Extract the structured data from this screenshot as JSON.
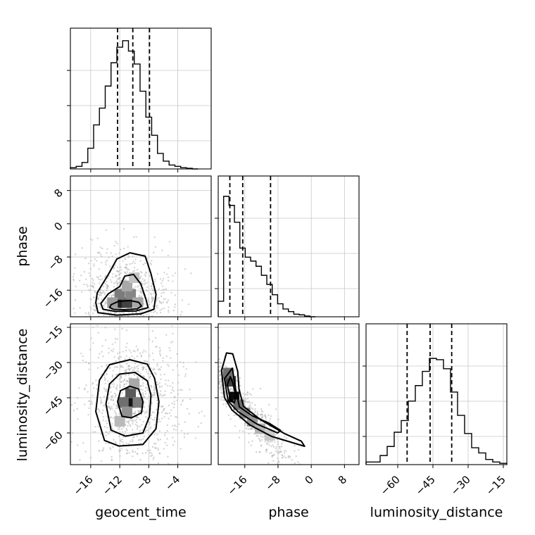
{
  "chart_data": {
    "type": "corner",
    "parameters": [
      "geocent_time",
      "phase",
      "luminosity_distance"
    ],
    "axis_labels": {
      "x": [
        "geocent_time",
        "phase",
        "luminosity_distance"
      ],
      "y": [
        "phase",
        "luminosity_distance"
      ]
    },
    "ranges": {
      "geocent_time": [
        -18.8,
        0.6
      ],
      "phase": [
        -22.4,
        11.5
      ],
      "luminosity_distance": [
        -73.5,
        -13.5
      ]
    },
    "ticks": {
      "geocent_time": [
        -16,
        -12,
        -8,
        -4
      ],
      "phase": [
        -16,
        -8,
        0,
        8
      ],
      "luminosity_distance": [
        -60,
        -45,
        -30,
        -15
      ]
    },
    "quantiles": {
      "geocent_time": [
        -12.3,
        -10.2,
        -7.9
      ],
      "phase": [
        -19.6,
        -16.5,
        -9.8
      ],
      "luminosity_distance": [
        -56.0,
        -46.2,
        -37.0
      ]
    },
    "histograms": {
      "geocent_time": {
        "edges": [
          -18.8,
          -18.0,
          -17.2,
          -16.4,
          -15.6,
          -14.8,
          -14.0,
          -13.2,
          -12.4,
          -11.6,
          -10.8,
          -10.0,
          -9.2,
          -8.4,
          -7.6,
          -6.8,
          -6.0,
          -5.2,
          -4.4,
          -3.6,
          -2.8,
          -2.0,
          -1.2
        ],
        "counts": [
          0.01,
          0.02,
          0.05,
          0.16,
          0.34,
          0.47,
          0.64,
          0.82,
          0.94,
          0.99,
          0.91,
          0.81,
          0.6,
          0.4,
          0.26,
          0.12,
          0.06,
          0.03,
          0.02,
          0.01,
          0.005,
          0.0
        ]
      },
      "phase": {
        "edges": [
          -22.4,
          -21.1,
          -19.8,
          -18.5,
          -17.2,
          -15.9,
          -14.6,
          -13.3,
          -12.0,
          -10.7,
          -9.4,
          -8.1,
          -6.8,
          -5.5,
          -4.2,
          -2.9,
          -1.6,
          -0.3,
          1.0
        ],
        "counts": [
          0.12,
          0.93,
          0.86,
          0.73,
          0.53,
          0.46,
          0.43,
          0.39,
          0.32,
          0.25,
          0.17,
          0.1,
          0.06,
          0.04,
          0.02,
          0.015,
          0.006,
          0.0
        ]
      },
      "luminosity_distance": {
        "edges": [
          -73.5,
          -70.5,
          -67.5,
          -64.5,
          -61.5,
          -58.5,
          -55.5,
          -52.5,
          -49.5,
          -46.5,
          -43.5,
          -40.5,
          -37.5,
          -34.5,
          -31.5,
          -28.5,
          -25.5,
          -22.5,
          -19.5,
          -16.5,
          -13.5
        ],
        "counts": [
          0.02,
          0.02,
          0.07,
          0.14,
          0.25,
          0.34,
          0.49,
          0.61,
          0.72,
          0.82,
          0.81,
          0.74,
          0.56,
          0.38,
          0.24,
          0.13,
          0.09,
          0.04,
          0.02,
          0.01
        ]
      }
    },
    "pairs": [
      {
        "x": "geocent_time",
        "y": "phase",
        "center": [
          -11.4,
          -19.0
        ],
        "density_cells": [
          {
            "x": -12.0,
            "y": -19.0,
            "d": 0.9
          },
          {
            "x": -11.0,
            "y": -19.0,
            "d": 0.75
          },
          {
            "x": -12.0,
            "y": -17.0,
            "d": 0.5
          },
          {
            "x": -10.5,
            "y": -17.0,
            "d": 0.45
          },
          {
            "x": -11.0,
            "y": -15.0,
            "d": 0.3
          },
          {
            "x": -10.0,
            "y": -13.0,
            "d": 0.18
          },
          {
            "x": -13.0,
            "y": -19.0,
            "d": 0.35
          },
          {
            "x": -9.5,
            "y": -19.0,
            "d": 0.3
          }
        ],
        "contours": [
          [
            [
              -13.4,
              -20.2
            ],
            [
              -12.8,
              -20.6
            ],
            [
              -11.4,
              -20.7
            ],
            [
              -9.6,
              -20.5
            ],
            [
              -9.0,
              -19.8
            ],
            [
              -9.4,
              -18.9
            ],
            [
              -10.6,
              -18.5
            ],
            [
              -12.2,
              -18.7
            ],
            [
              -13.2,
              -19.5
            ]
          ],
          [
            [
              -14.6,
              -19.2
            ],
            [
              -14.3,
              -20.6
            ],
            [
              -12.6,
              -21.1
            ],
            [
              -9.8,
              -21.0
            ],
            [
              -8.1,
              -20.2
            ],
            [
              -8.4,
              -18.1
            ],
            [
              -9.1,
              -14.5
            ],
            [
              -10.1,
              -12.2
            ],
            [
              -11.3,
              -12.6
            ],
            [
              -12.0,
              -15.1
            ],
            [
              -13.6,
              -16.9
            ]
          ],
          [
            [
              -15.3,
              -19.0
            ],
            [
              -15.0,
              -21.4
            ],
            [
              -12.4,
              -22.0
            ],
            [
              -9.1,
              -21.7
            ],
            [
              -7.3,
              -20.6
            ],
            [
              -7.0,
              -17.0
            ],
            [
              -7.7,
              -12.0
            ],
            [
              -8.5,
              -7.8
            ],
            [
              -10.6,
              -7.0
            ],
            [
              -12.4,
              -8.5
            ],
            [
              -13.6,
              -12.3
            ],
            [
              -15.1,
              -16.6
            ]
          ]
        ]
      },
      {
        "x": "geocent_time",
        "y": "luminosity_distance",
        "center": [
          -10.3,
          -47.0
        ],
        "density_cells": [
          {
            "x": -10.5,
            "y": -47.0,
            "d": 0.95
          },
          {
            "x": -10.5,
            "y": -43.0,
            "d": 0.65
          },
          {
            "x": -11.5,
            "y": -47.0,
            "d": 0.55
          },
          {
            "x": -9.5,
            "y": -47.0,
            "d": 0.5
          },
          {
            "x": -11.0,
            "y": -51.0,
            "d": 0.4
          },
          {
            "x": -10.0,
            "y": -39.0,
            "d": 0.3
          },
          {
            "x": -12.0,
            "y": -55.0,
            "d": 0.22
          }
        ],
        "contours": [
          [
            [
              -11.7,
              -52.9
            ],
            [
              -10.4,
              -53.6
            ],
            [
              -9.0,
              -51.4
            ],
            [
              -8.8,
              -46.7
            ],
            [
              -9.4,
              -41.3
            ],
            [
              -10.6,
              -40.1
            ],
            [
              -11.9,
              -42.0
            ],
            [
              -12.3,
              -46.7
            ]
          ],
          [
            [
              -13.2,
              -58.8
            ],
            [
              -11.2,
              -61.4
            ],
            [
              -8.8,
              -60.0
            ],
            [
              -7.9,
              -52.9
            ],
            [
              -7.7,
              -44.0
            ],
            [
              -8.2,
              -37.8
            ],
            [
              -9.9,
              -34.2
            ],
            [
              -12.0,
              -34.9
            ],
            [
              -13.4,
              -39.1
            ],
            [
              -13.9,
              -47.7
            ]
          ],
          [
            [
              -14.1,
              -63.2
            ],
            [
              -12.1,
              -65.6
            ],
            [
              -8.8,
              -64.9
            ],
            [
              -7.0,
              -58.2
            ],
            [
              -6.6,
              -46.7
            ],
            [
              -7.2,
              -36.7
            ],
            [
              -8.2,
              -30.7
            ],
            [
              -10.6,
              -28.8
            ],
            [
              -13.4,
              -30.9
            ],
            [
              -14.8,
              -37.5
            ],
            [
              -15.3,
              -50.9
            ]
          ]
        ]
      },
      {
        "x": "phase",
        "y": "luminosity_distance",
        "center": [
          -18.9,
          -44.0
        ],
        "density_cells": [
          {
            "x": -18.6,
            "y": -44.7,
            "d": 1.0
          },
          {
            "x": -19.4,
            "y": -38.0,
            "d": 0.75
          },
          {
            "x": -20.0,
            "y": -34.5,
            "d": 0.55
          },
          {
            "x": -17.5,
            "y": -48.0,
            "d": 0.55
          },
          {
            "x": -16.0,
            "y": -51.5,
            "d": 0.45
          },
          {
            "x": -14.2,
            "y": -55.0,
            "d": 0.38
          },
          {
            "x": -12.3,
            "y": -58.2,
            "d": 0.25
          },
          {
            "x": -10.0,
            "y": -61.0,
            "d": 0.15
          }
        ],
        "contours": [
          [
            [
              -20.2,
              -39.6
            ],
            [
              -19.4,
              -46.3
            ],
            [
              -18.5,
              -47.2
            ],
            [
              -18.2,
              -43.9
            ],
            [
              -18.9,
              -38.6
            ],
            [
              -19.5,
              -36.0
            ]
          ],
          [
            [
              -20.9,
              -36.9
            ],
            [
              -20.0,
              -46.5
            ],
            [
              -17.6,
              -51.0
            ],
            [
              -13.1,
              -56.2
            ],
            [
              -8.1,
              -60.0
            ],
            [
              -7.4,
              -58.9
            ],
            [
              -10.0,
              -56.0
            ],
            [
              -14.3,
              -52.6
            ],
            [
              -17.3,
              -48.9
            ],
            [
              -18.2,
              -41.4
            ],
            [
              -19.0,
              -32.4
            ]
          ],
          [
            [
              -21.6,
              -33.4
            ],
            [
              -20.9,
              -44.9
            ],
            [
              -19.1,
              -50.2
            ],
            [
              -14.8,
              -56.6
            ],
            [
              -9.5,
              -61.5
            ],
            [
              -1.6,
              -65.7
            ],
            [
              -2.4,
              -63.5
            ],
            [
              -6.3,
              -60.4
            ],
            [
              -12.2,
              -54.4
            ],
            [
              -16.3,
              -48.7
            ],
            [
              -17.4,
              -41.3
            ],
            [
              -17.7,
              -33.8
            ],
            [
              -18.9,
              -26.3
            ],
            [
              -20.4,
              -25.9
            ]
          ]
        ]
      }
    ]
  }
}
